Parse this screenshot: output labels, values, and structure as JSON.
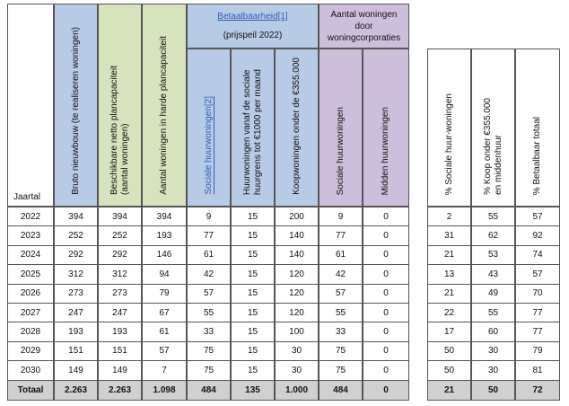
{
  "colors": {
    "blue": "#b7cae6",
    "green": "#d6e3bd",
    "purple": "#cdbfdc",
    "total": "#d0d0d0",
    "link": "#2e5fb8"
  },
  "headers": {
    "year": "Jaartal",
    "bruto": "Bruto nieuwbouw (te realiseren woningen)",
    "beschikbaar": "Beschikbare netto plancapaciteit\n(aantal woningen)",
    "harde": "Aantal woningen in harde plancapaciteit",
    "betaal_link": "Betaalbaarheid[1]",
    "prijspeil": "(prijspeil 2022)",
    "sociale": "Sociale huurwoningen[2]",
    "huur1000": "Huurwoningen vanaf de sociale\nhuurgrens tot €1000 per maand",
    "koop355": "Koopwoningen onder de €355.000",
    "corp": "Aantal woningen\ndoor\nwoningcorporaties",
    "corp_sociale": "Sociale huurwoningen",
    "corp_midden": "Midden huurwoningen",
    "pct_sociale": "% Sociale huur-woningen",
    "pct_koop": "% Koop onder €355.000\nen middenhuur",
    "pct_totaal": "% Betaalbaar totaal"
  },
  "rows": [
    {
      "year": "2022",
      "bruto": "394",
      "besch": "394",
      "harde": "394",
      "soc": "9",
      "h1000": "15",
      "koop": "200",
      "csoc": "9",
      "cmid": "0",
      "p1": "2",
      "p2": "55",
      "p3": "57"
    },
    {
      "year": "2023",
      "bruto": "252",
      "besch": "252",
      "harde": "193",
      "soc": "77",
      "h1000": "15",
      "koop": "140",
      "csoc": "77",
      "cmid": "0",
      "p1": "31",
      "p2": "62",
      "p3": "92"
    },
    {
      "year": "2024",
      "bruto": "292",
      "besch": "292",
      "harde": "146",
      "soc": "61",
      "h1000": "15",
      "koop": "140",
      "csoc": "61",
      "cmid": "0",
      "p1": "21",
      "p2": "53",
      "p3": "74"
    },
    {
      "year": "2025",
      "bruto": "312",
      "besch": "312",
      "harde": "94",
      "soc": "42",
      "h1000": "15",
      "koop": "120",
      "csoc": "42",
      "cmid": "0",
      "p1": "13",
      "p2": "43",
      "p3": "57"
    },
    {
      "year": "2026",
      "bruto": "273",
      "besch": "273",
      "harde": "79",
      "soc": "57",
      "h1000": "15",
      "koop": "120",
      "csoc": "57",
      "cmid": "0",
      "p1": "21",
      "p2": "49",
      "p3": "70"
    },
    {
      "year": "2027",
      "bruto": "247",
      "besch": "247",
      "harde": "67",
      "soc": "55",
      "h1000": "15",
      "koop": "120",
      "csoc": "55",
      "cmid": "0",
      "p1": "22",
      "p2": "55",
      "p3": "77"
    },
    {
      "year": "2028",
      "bruto": "193",
      "besch": "193",
      "harde": "61",
      "soc": "33",
      "h1000": "15",
      "koop": "100",
      "csoc": "33",
      "cmid": "0",
      "p1": "17",
      "p2": "60",
      "p3": "77"
    },
    {
      "year": "2029",
      "bruto": "151",
      "besch": "151",
      "harde": "57",
      "soc": "75",
      "h1000": "15",
      "koop": "30",
      "csoc": "75",
      "cmid": "0",
      "p1": "50",
      "p2": "30",
      "p3": "79"
    },
    {
      "year": "2030",
      "bruto": "149",
      "besch": "149",
      "harde": "7",
      "soc": "75",
      "h1000": "15",
      "koop": "30",
      "csoc": "75",
      "cmid": "0",
      "p1": "50",
      "p2": "30",
      "p3": "81"
    }
  ],
  "totals": {
    "year": "Totaal",
    "bruto": "2.263",
    "besch": "2.263",
    "harde": "1.098",
    "soc": "484",
    "h1000": "135",
    "koop": "1.000",
    "csoc": "484",
    "cmid": "0",
    "p1": "21",
    "p2": "50",
    "p3": "72"
  }
}
